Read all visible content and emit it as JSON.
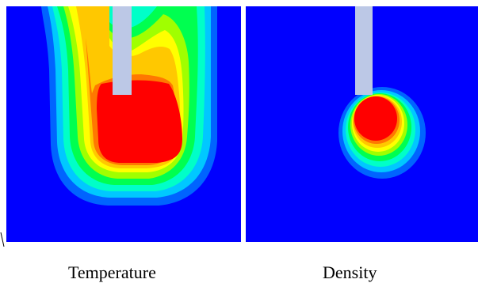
{
  "panels": [
    {
      "caption": "Temperature"
    },
    {
      "caption": "Density"
    }
  ],
  "colors": {
    "background": "#0000FF",
    "probe": "#BCC8E6",
    "contour_levels": [
      "#0000FF",
      "#0064FF",
      "#00C8FF",
      "#00FFC8",
      "#00FF50",
      "#A0FF00",
      "#FFFF00",
      "#FFC800",
      "#FF7800",
      "#FF0000"
    ]
  }
}
